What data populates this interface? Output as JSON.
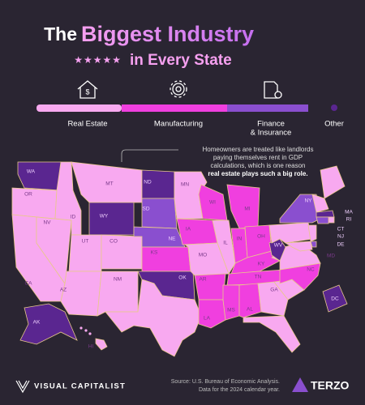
{
  "header": {
    "title_lead": "The",
    "title_main": "Biggest Industry",
    "stars": "★★★★★",
    "subtitle": "in Every State"
  },
  "legend": {
    "items": [
      {
        "label": [
          "Real Estate"
        ],
        "color": "#f8a9f0"
      },
      {
        "label": [
          "Manufacturing"
        ],
        "color": "#f03fdf"
      },
      {
        "label": [
          "Finance",
          "& Insurance"
        ],
        "color": "#8a4fcf"
      },
      {
        "label": [
          "Other"
        ],
        "color": "#5a2690"
      }
    ]
  },
  "annotation": {
    "lines": [
      "Homeowners are treated like landlords",
      "paying themselves rent in GDP",
      "calculations, which is one reason"
    ],
    "bold": "real estate plays such a big role."
  },
  "states": [
    {
      "abbr": "WA",
      "industry": 3
    },
    {
      "abbr": "OR",
      "industry": 0
    },
    {
      "abbr": "CA",
      "industry": 0
    },
    {
      "abbr": "NV",
      "industry": 0
    },
    {
      "abbr": "ID",
      "industry": 0
    },
    {
      "abbr": "MT",
      "industry": 0
    },
    {
      "abbr": "WY",
      "industry": 3
    },
    {
      "abbr": "UT",
      "industry": 0
    },
    {
      "abbr": "CO",
      "industry": 0
    },
    {
      "abbr": "AZ",
      "industry": 0
    },
    {
      "abbr": "NM",
      "industry": 0
    },
    {
      "abbr": "ND",
      "industry": 3
    },
    {
      "abbr": "SD",
      "industry": 2
    },
    {
      "abbr": "NE",
      "industry": 2
    },
    {
      "abbr": "KS",
      "industry": 1
    },
    {
      "abbr": "OK",
      "industry": 3
    },
    {
      "industry": 0
    },
    {
      "abbr": "MN",
      "industry": 0
    },
    {
      "abbr": "IA",
      "industry": 1
    },
    {
      "abbr": "MO",
      "industry": 0
    },
    {
      "abbr": "AR",
      "industry": 1
    },
    {
      "abbr": "LA",
      "industry": 1
    },
    {
      "abbr": "WI",
      "industry": 1
    },
    {
      "abbr": "IL",
      "industry": 0
    },
    {
      "abbr": "MI",
      "industry": 1
    },
    {
      "abbr": "IN",
      "industry": 1
    },
    {
      "abbr": "OH",
      "industry": 1
    },
    {
      "abbr": "KY",
      "industry": 1
    },
    {
      "abbr": "TN",
      "industry": 1
    },
    {
      "abbr": "MS",
      "industry": 1
    },
    {
      "abbr": "AL",
      "industry": 1
    },
    {
      "abbr": "GA",
      "industry": 0
    },
    {
      "industry": 0
    },
    {
      "industry": 0
    },
    {
      "abbr": "NC",
      "industry": 1
    },
    {
      "industry": 0
    },
    {
      "abbr": "WV",
      "industry": 3
    },
    {
      "industry": 0
    },
    {
      "abbr": "NY",
      "industry": 2
    },
    {
      "industry": 0
    },
    {
      "industry": 0
    },
    {
      "abbr": "MA",
      "industry": 3
    },
    {
      "abbr": "RI",
      "industry": 0
    },
    {
      "abbr": "CT",
      "industry": 2
    },
    {
      "abbr": "NJ",
      "industry": 0
    },
    {
      "abbr": "DE",
      "industry": 2
    },
    {
      "abbr": "MD",
      "industry": 0
    },
    {
      "abbr": "DC",
      "industry": 3
    },
    {
      "abbr": "AK",
      "industry": 3
    },
    {
      "abbr": "HI",
      "industry": 0
    }
  ],
  "footer": {
    "brand": "VISUAL CAPITALIST",
    "source": [
      "Source: U.S. Bureau of Economic Analysis.",
      "Data for the 2024 calendar year."
    ],
    "partner": "TERZO"
  }
}
